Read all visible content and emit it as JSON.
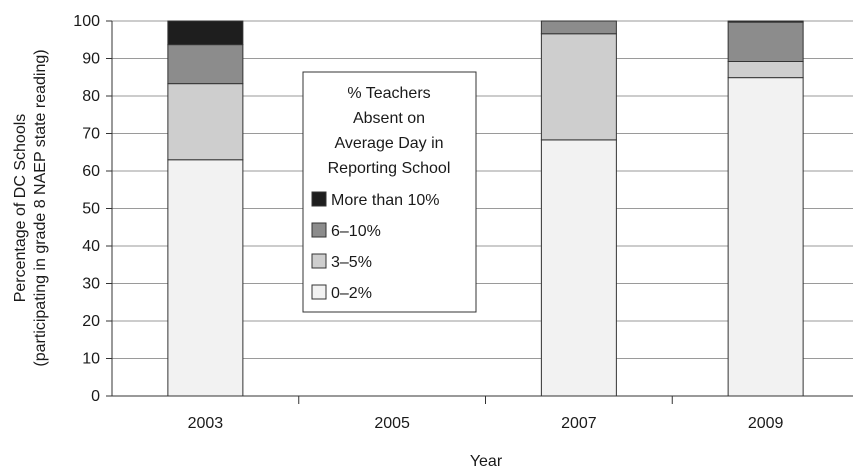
{
  "chart_data": {
    "type": "bar",
    "stacked": true,
    "categories": [
      "2003",
      "2005",
      "2007",
      "2009"
    ],
    "xlabel": "Year",
    "ylabel": [
      "Percentage of DC Schools",
      "(participating in grade 8 NAEP state reading)"
    ],
    "ylim": [
      0,
      100
    ],
    "yticks": [
      0,
      10,
      20,
      30,
      40,
      50,
      60,
      70,
      80,
      90,
      100
    ],
    "grid": true,
    "series": [
      {
        "name": "0–2%",
        "color": "#f2f2f2",
        "values": [
          63,
          null,
          68.3,
          84.9
        ]
      },
      {
        "name": "3–5%",
        "color": "#cecece",
        "values": [
          20.3,
          null,
          28.3,
          4.3
        ]
      },
      {
        "name": "6–10%",
        "color": "#8c8c8c",
        "values": [
          10.4,
          null,
          3.4,
          10.5
        ]
      },
      {
        "name": "More than 10%",
        "color": "#1e1e1e",
        "values": [
          6.3,
          null,
          0,
          0.3
        ]
      }
    ],
    "legend": {
      "title": [
        "% Teachers",
        "Absent on",
        "Average Day in",
        "Reporting School"
      ],
      "placement": "center"
    }
  }
}
